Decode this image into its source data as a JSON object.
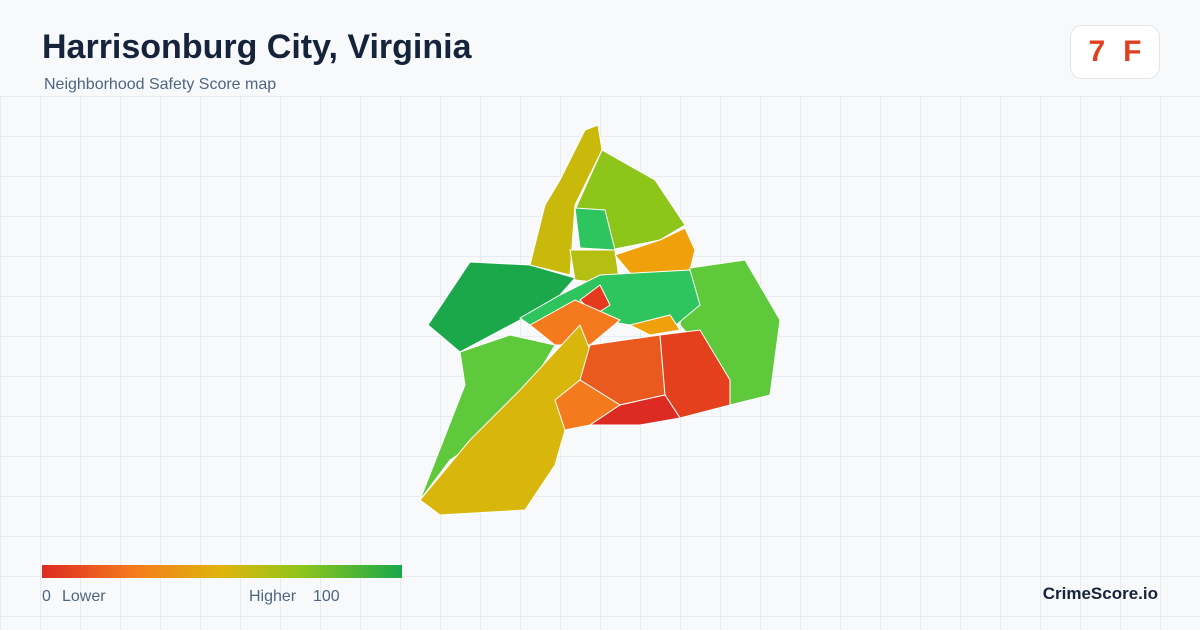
{
  "header": {
    "title": "Harrisonburg City, Virginia",
    "subtitle": "Neighborhood Safety Score map"
  },
  "score": {
    "value": 7,
    "grade": "F"
  },
  "legend": {
    "min": 0,
    "min_label": "Lower",
    "max_label": "Higher",
    "max": 100
  },
  "brand": "CrimeScore.io"
}
